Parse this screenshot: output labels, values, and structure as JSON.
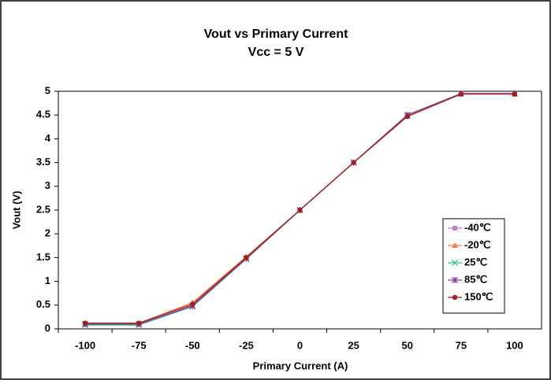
{
  "chart_data": {
    "type": "line",
    "title": "Vout vs Primary Current",
    "subtitle": "Vcc = 5 V",
    "x_label": "Primary Current (A)",
    "y_label": "Vout (V)",
    "categories": [
      -100,
      -75,
      -50,
      -25,
      0,
      25,
      50,
      75,
      100
    ],
    "series": [
      {
        "name": "-40℃",
        "color": "#c080c8",
        "marker": "square",
        "values": [
          0.1,
          0.1,
          0.5,
          1.5,
          2.5,
          3.5,
          4.5,
          4.95,
          4.95
        ]
      },
      {
        "name": "-20℃",
        "color": "#ff8040",
        "marker": "triangle",
        "values": [
          0.12,
          0.12,
          0.55,
          1.52,
          2.5,
          3.5,
          4.47,
          4.95,
          4.95
        ]
      },
      {
        "name": "25℃",
        "color": "#40c080",
        "marker": "x",
        "values": [
          0.08,
          0.08,
          0.47,
          1.47,
          2.5,
          3.5,
          4.5,
          4.95,
          4.95
        ]
      },
      {
        "name": "85℃",
        "color": "#8040a0",
        "marker": "star",
        "values": [
          0.1,
          0.1,
          0.48,
          1.48,
          2.5,
          3.5,
          4.5,
          4.95,
          4.95
        ]
      },
      {
        "name": "150℃",
        "color": "#a02020",
        "marker": "circle",
        "values": [
          0.12,
          0.12,
          0.52,
          1.5,
          2.5,
          3.5,
          4.47,
          4.94,
          4.94
        ]
      }
    ],
    "ylim": [
      0,
      5
    ],
    "yticks": [
      0,
      0.5,
      1,
      1.5,
      2,
      2.5,
      3,
      3.5,
      4,
      4.5,
      5
    ],
    "grid": false,
    "legend": "right"
  }
}
